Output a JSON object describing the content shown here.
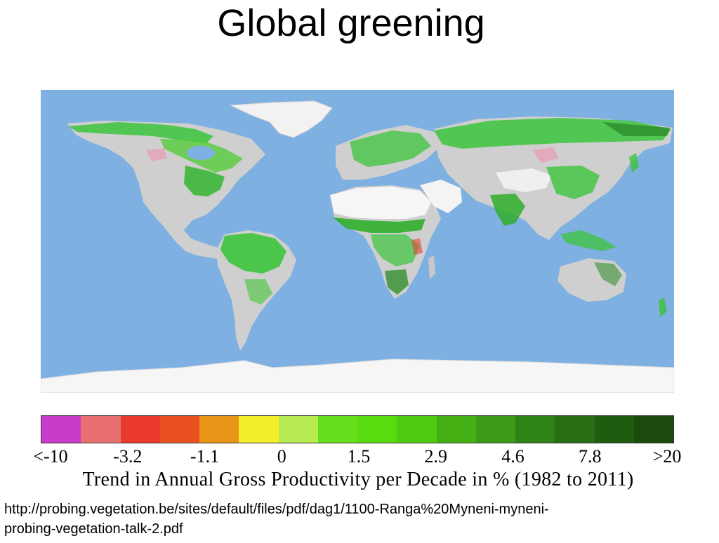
{
  "slide": {
    "title": "Global greening"
  },
  "map": {
    "ocean_color": "#7fb0e2",
    "ice_color": "#f4f4f4",
    "land_gray": "#cfcfcf",
    "green_color": "#3cc43c",
    "dark_green_color": "#1f7a1f",
    "decline_color": "#e89bb4"
  },
  "colorbar": {
    "colors": [
      "#c73cc9",
      "#e87070",
      "#e8392a",
      "#e8501f",
      "#e8951a",
      "#f2ee2a",
      "#b6ec52",
      "#66e01c",
      "#58dc10",
      "#4ecc12",
      "#44b014",
      "#3c9a18",
      "#2f8316",
      "#276e14",
      "#1f5c10",
      "#1a4a0c"
    ],
    "ticks": [
      "<-10",
      "-3.2",
      "-1.1",
      "0",
      "1.5",
      "2.9",
      "4.6",
      "7.8",
      ">20"
    ],
    "label": "Trend in Annual Gross Productivity per Decade in % (1982 to 2011)"
  },
  "source": {
    "line1": "http://probing.vegetation.be/sites/default/files/pdf/dag1/1100-Ranga%20Myneni-myneni-",
    "line2": "probing-vegetation-talk-2.pdf"
  }
}
